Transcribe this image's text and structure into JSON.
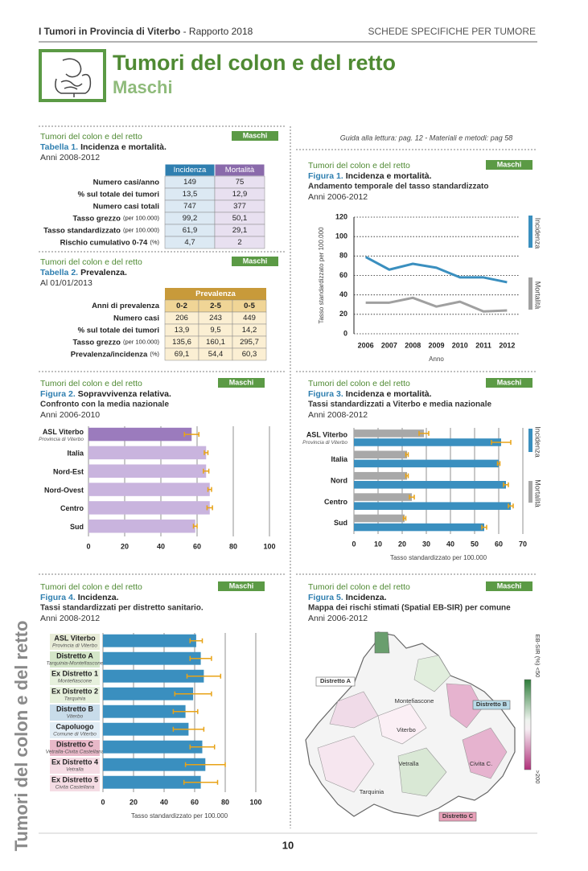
{
  "header": {
    "left_bold": "I Tumori in Provincia di Viterbo",
    "left_rest": " - Rapporto 2018",
    "right": "SCHEDE SPECIFICHE PER TUMORE"
  },
  "title": "Tumori del colon e del retto",
  "subtitle": "Maschi",
  "sidebar": "Tumori del colon e del retto",
  "guide": "Guida alla lettura: pag. 12 - Materiali e metodi: pag 58",
  "page_number": "10",
  "table_1": {
    "section": "Tumori del colon e del retto",
    "badge": "Maschi",
    "label": "Tabella 1.",
    "title": "Incidenza e mortalità.",
    "period": "Anni 2008-2012",
    "columns": [
      "Incidenza",
      "Mortalità"
    ],
    "rows": [
      {
        "label": "Numero casi/anno",
        "cells": [
          "149",
          "75"
        ]
      },
      {
        "label": "% sul totale dei tumori",
        "cells": [
          "13,5",
          "12,9"
        ]
      },
      {
        "label": "Numero casi totali",
        "cells": [
          "747",
          "377"
        ]
      },
      {
        "label": "Tasso grezzo",
        "note": "(per 100.000)",
        "cells": [
          "99,2",
          "50,1"
        ]
      },
      {
        "label": "Tasso standardizzato",
        "note": "(per 100.000)",
        "cells": [
          "61,9",
          "29,1"
        ]
      },
      {
        "label": "Rischio cumulativo 0-74",
        "note": "(%)",
        "cells": [
          "4,7",
          "2"
        ]
      }
    ]
  },
  "table_2": {
    "section": "Tumori del colon e del retto",
    "badge": "Maschi",
    "label": "Tabella 2.",
    "title": "Prevalenza.",
    "period": "Al 01/01/2013",
    "header": "Prevalenza",
    "columns_label": "Anni di prevalenza",
    "columns": [
      "0-2",
      "2-5",
      "0-5"
    ],
    "rows": [
      {
        "label": "Numero casi",
        "cells": [
          "206",
          "243",
          "449"
        ]
      },
      {
        "label": "% sul totale dei tumori",
        "cells": [
          "13,9",
          "9,5",
          "14,2"
        ]
      },
      {
        "label": "Tasso grezzo",
        "note": "(per 100.000)",
        "cells": [
          "135,6",
          "160,1",
          "295,7"
        ]
      },
      {
        "label": "Prevalenza/incidenza",
        "note": "(%)",
        "cells": [
          "69,1",
          "54,4",
          "60,3"
        ]
      }
    ]
  },
  "chart_data": [
    {
      "type": "line",
      "section": "Tumori del colon e del retto",
      "badge": "Maschi",
      "label": "Figura 1.",
      "title": "Incidenza e mortalità.",
      "subtitle": "Andamento temporale del tasso standardizzato",
      "period": "Anni 2006-2012",
      "categories": [
        "2006",
        "2007",
        "2008",
        "2009",
        "2010",
        "2011",
        "2012"
      ],
      "series": [
        {
          "name": "Incidenza",
          "color": "#3a8fbf",
          "values": [
            79,
            66,
            72,
            68,
            58,
            58,
            53
          ]
        },
        {
          "name": "Mortalità",
          "color": "#a0a0a0",
          "values": [
            32,
            32,
            37,
            28,
            33,
            23,
            24
          ]
        }
      ],
      "ylim": [
        0,
        120
      ],
      "yticks": [
        0,
        20,
        40,
        60,
        80,
        100,
        120
      ],
      "ylabel": "Tasso standardizzato per 100.000",
      "xlabel": "Anno",
      "grid": true
    },
    {
      "type": "hbar",
      "section": "Tumori del colon e del retto",
      "badge": "Maschi",
      "label": "Figura 2.",
      "title": "Sopravvivenza relativa.",
      "subtitle": "Confronto con la media nazionale",
      "period": "Anni 2006-2010",
      "categories": [
        "ASL Viterbo",
        "Italia",
        "Nord-Est",
        "Nord-Ovest",
        "Centro",
        "Sud"
      ],
      "category_notes": [
        "Provincia di Viterbo",
        null,
        null,
        null,
        null,
        null
      ],
      "values": [
        57,
        65,
        65,
        67,
        67,
        59
      ],
      "errors": [
        4,
        1,
        1.5,
        1,
        1.5,
        1
      ],
      "colors": [
        "#9b7bbd",
        "#c9b4de",
        "#c9b4de",
        "#c9b4de",
        "#c9b4de",
        "#c9b4de"
      ],
      "error_color": "#e8a317",
      "xlim": [
        0,
        100
      ],
      "xticks": [
        0,
        20,
        40,
        60,
        80,
        100
      ]
    },
    {
      "type": "hbar",
      "section": "Tumori del colon e del retto",
      "badge": "Maschi",
      "label": "Figura 3.",
      "title": "Incidenza e mortalità.",
      "subtitle": "Tassi standardizzati a Viterbo e media nazionale",
      "period": "Anni 2008-2012",
      "categories": [
        "ASL Viterbo",
        "Italia",
        "Nord",
        "Centro",
        "Sud"
      ],
      "category_notes": [
        "Provincia di Viterbo",
        null,
        null,
        null,
        null
      ],
      "series": [
        {
          "name": "Incidenza",
          "color": "#3a8fbf",
          "values": [
            61,
            60,
            63,
            65,
            54
          ],
          "errors": [
            4,
            0.5,
            1,
            1,
            1
          ]
        },
        {
          "name": "Mortalità",
          "color": "#a8a8a8",
          "values": [
            29,
            22,
            22,
            24,
            21
          ],
          "errors": [
            2,
            0.5,
            0.5,
            1,
            0.5
          ]
        }
      ],
      "error_color": "#e8a317",
      "xlim": [
        0,
        70
      ],
      "xticks": [
        0,
        10,
        20,
        30,
        40,
        50,
        60,
        70
      ],
      "xlabel": "Tasso standardizzato per 100.000"
    },
    {
      "type": "hbar",
      "section": "Tumori del colon e del retto",
      "badge": "Maschi",
      "label": "Figura 4.",
      "title": "Incidenza.",
      "subtitle": "Tassi standardizzati per distretto sanitario.",
      "period": "Anni 2008-2012",
      "categories": [
        "ASL Viterbo",
        "Distretto A",
        "Ex Distretto 1",
        "Ex Distretto 2",
        "Distretto B",
        "Capoluogo",
        "Distretto C",
        "Ex Distretto 4",
        "Ex Distretto 5"
      ],
      "category_notes": [
        "Provincia di Viterbo",
        "Tarquinia-Montefiascone",
        "Montefiascone",
        "Tarquinia",
        "Viterbo",
        "Comune di Viterbo",
        "Vetralla-Civita Castellana",
        "Vetralla",
        "Civita Castellana"
      ],
      "label_colors": [
        "#e8ecd8",
        "#d4e6c8",
        "#e6f0dc",
        "#e6f0dc",
        "#c8dcea",
        "#e2edf5",
        "#e8b8c8",
        "#f5dce4",
        "#f5dce4"
      ],
      "values": [
        61,
        64,
        66,
        59,
        54,
        56,
        65,
        67,
        64
      ],
      "errors": [
        4,
        7,
        11,
        12,
        8,
        10,
        8,
        13,
        11
      ],
      "color": "#3a8fbf",
      "error_color": "#e8a317",
      "xlim": [
        0,
        100
      ],
      "xticks": [
        0,
        20,
        40,
        60,
        80,
        100
      ],
      "xlabel": "Tasso standardizzato per 100.000"
    },
    {
      "type": "map",
      "section": "Tumori del colon e del retto",
      "badge": "Maschi",
      "label": "Figura 5.",
      "title": "Incidenza.",
      "subtitle": "Mappa dei rischi stimati (Spatial EB-SIR) per comune",
      "period": "Anni 2006-2012",
      "districts": [
        "Distretto A",
        "Distretto B",
        "Distretto C"
      ],
      "towns": [
        "Montefiascone",
        "Viterbo",
        "Vetralla",
        "Civita C.",
        "Tarquinia"
      ],
      "legend_title": "EB-SIR (%)",
      "legend_low": "<50",
      "legend_high": ">200"
    }
  ]
}
